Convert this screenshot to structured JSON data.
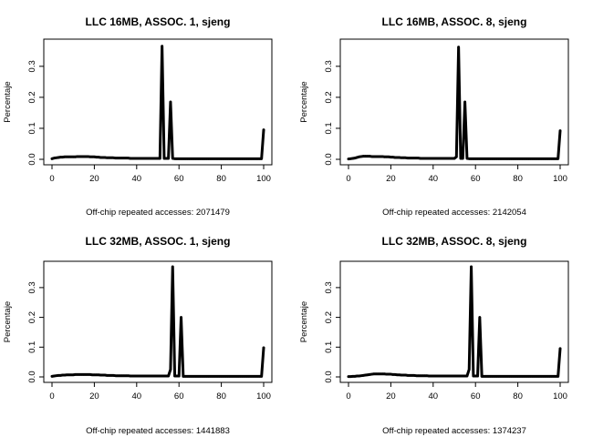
{
  "chart_data": [
    {
      "type": "line",
      "title": "LLC 16MB, ASSOC. 1, sjeng",
      "ylabel": "Percentaje",
      "xlabel": "Off-chip repeated accesses: 2071479",
      "xlim": [
        0,
        100
      ],
      "ylim": [
        0,
        0.37
      ],
      "xticks": [
        "0",
        "20",
        "40",
        "60",
        "80",
        "100"
      ],
      "yticks": [
        "0.0",
        "0.1",
        "0.2",
        "0.3"
      ],
      "x": [
        0,
        1,
        2,
        3,
        4,
        5,
        6,
        7,
        8,
        9,
        10,
        11,
        12,
        13,
        14,
        15,
        16,
        17,
        18,
        19,
        20,
        21,
        22,
        23,
        24,
        25,
        26,
        27,
        28,
        29,
        30,
        31,
        32,
        33,
        34,
        35,
        36,
        37,
        38,
        39,
        40,
        41,
        42,
        43,
        44,
        45,
        46,
        47,
        48,
        49,
        50,
        51,
        52,
        53,
        54,
        55,
        56,
        57,
        58,
        59,
        60,
        61,
        62,
        63,
        64,
        65,
        66,
        67,
        68,
        69,
        70,
        71,
        72,
        73,
        74,
        75,
        76,
        77,
        78,
        79,
        80,
        81,
        82,
        83,
        84,
        85,
        86,
        87,
        88,
        89,
        90,
        91,
        92,
        93,
        94,
        95,
        96,
        97,
        98,
        99,
        100
      ],
      "y": [
        0.002,
        0.004,
        0.005,
        0.006,
        0.007,
        0.007,
        0.008,
        0.008,
        0.008,
        0.008,
        0.008,
        0.008,
        0.009,
        0.009,
        0.009,
        0.009,
        0.009,
        0.009,
        0.008,
        0.008,
        0.008,
        0.007,
        0.007,
        0.006,
        0.006,
        0.006,
        0.005,
        0.005,
        0.005,
        0.005,
        0.004,
        0.004,
        0.004,
        0.004,
        0.004,
        0.004,
        0.004,
        0.003,
        0.003,
        0.003,
        0.003,
        0.003,
        0.003,
        0.003,
        0.003,
        0.003,
        0.003,
        0.003,
        0.003,
        0.003,
        0.003,
        0.003,
        0.365,
        0.003,
        0.003,
        0.003,
        0.185,
        0.003,
        0.002,
        0.002,
        0.002,
        0.002,
        0.002,
        0.002,
        0.002,
        0.002,
        0.002,
        0.002,
        0.002,
        0.002,
        0.002,
        0.002,
        0.002,
        0.002,
        0.002,
        0.002,
        0.002,
        0.002,
        0.002,
        0.002,
        0.002,
        0.002,
        0.002,
        0.002,
        0.002,
        0.002,
        0.002,
        0.002,
        0.002,
        0.002,
        0.002,
        0.002,
        0.002,
        0.002,
        0.002,
        0.002,
        0.002,
        0.002,
        0.002,
        0.002,
        0.095
      ]
    },
    {
      "type": "line",
      "title": "LLC 16MB, ASSOC. 8, sjeng",
      "ylabel": "Percentaje",
      "xlabel": "Off-chip repeated accesses: 2142054",
      "xlim": [
        0,
        100
      ],
      "ylim": [
        0,
        0.37
      ],
      "xticks": [
        "0",
        "20",
        "40",
        "60",
        "80",
        "100"
      ],
      "yticks": [
        "0.0",
        "0.1",
        "0.2",
        "0.3"
      ],
      "x": [
        0,
        1,
        2,
        3,
        4,
        5,
        6,
        7,
        8,
        9,
        10,
        11,
        12,
        13,
        14,
        15,
        16,
        17,
        18,
        19,
        20,
        21,
        22,
        23,
        24,
        25,
        26,
        27,
        28,
        29,
        30,
        31,
        32,
        33,
        34,
        35,
        36,
        37,
        38,
        39,
        40,
        41,
        42,
        43,
        44,
        45,
        46,
        47,
        48,
        49,
        50,
        51,
        52,
        53,
        54,
        55,
        56,
        57,
        58,
        59,
        60,
        61,
        62,
        63,
        64,
        65,
        66,
        67,
        68,
        69,
        70,
        71,
        72,
        73,
        74,
        75,
        76,
        77,
        78,
        79,
        80,
        81,
        82,
        83,
        84,
        85,
        86,
        87,
        88,
        89,
        90,
        91,
        92,
        93,
        94,
        95,
        96,
        97,
        98,
        99,
        100
      ],
      "y": [
        0.001,
        0.002,
        0.003,
        0.004,
        0.006,
        0.008,
        0.009,
        0.01,
        0.01,
        0.01,
        0.01,
        0.009,
        0.009,
        0.009,
        0.009,
        0.009,
        0.009,
        0.008,
        0.008,
        0.008,
        0.007,
        0.007,
        0.006,
        0.006,
        0.006,
        0.005,
        0.005,
        0.005,
        0.004,
        0.004,
        0.004,
        0.004,
        0.004,
        0.004,
        0.003,
        0.003,
        0.003,
        0.003,
        0.003,
        0.003,
        0.003,
        0.003,
        0.003,
        0.003,
        0.003,
        0.003,
        0.003,
        0.003,
        0.003,
        0.003,
        0.003,
        0.008,
        0.362,
        0.003,
        0.003,
        0.185,
        0.003,
        0.002,
        0.002,
        0.002,
        0.002,
        0.002,
        0.002,
        0.002,
        0.002,
        0.002,
        0.002,
        0.002,
        0.002,
        0.002,
        0.002,
        0.002,
        0.002,
        0.002,
        0.002,
        0.002,
        0.002,
        0.002,
        0.002,
        0.002,
        0.002,
        0.002,
        0.002,
        0.002,
        0.002,
        0.002,
        0.002,
        0.002,
        0.002,
        0.002,
        0.002,
        0.002,
        0.002,
        0.002,
        0.002,
        0.002,
        0.002,
        0.002,
        0.002,
        0.002,
        0.092
      ]
    },
    {
      "type": "line",
      "title": "LLC 32MB, ASSOC. 1, sjeng",
      "ylabel": "Percentaje",
      "xlabel": "Off-chip repeated accesses: 1441883",
      "xlim": [
        0,
        100
      ],
      "ylim": [
        0,
        0.37
      ],
      "xticks": [
        "0",
        "20",
        "40",
        "60",
        "80",
        "100"
      ],
      "yticks": [
        "0.0",
        "0.1",
        "0.2",
        "0.3"
      ],
      "x": [
        0,
        1,
        2,
        3,
        4,
        5,
        6,
        7,
        8,
        9,
        10,
        11,
        12,
        13,
        14,
        15,
        16,
        17,
        18,
        19,
        20,
        21,
        22,
        23,
        24,
        25,
        26,
        27,
        28,
        29,
        30,
        31,
        32,
        33,
        34,
        35,
        36,
        37,
        38,
        39,
        40,
        41,
        42,
        43,
        44,
        45,
        46,
        47,
        48,
        49,
        50,
        51,
        52,
        53,
        54,
        55,
        56,
        57,
        58,
        59,
        60,
        61,
        62,
        63,
        64,
        65,
        66,
        67,
        68,
        69,
        70,
        71,
        72,
        73,
        74,
        75,
        76,
        77,
        78,
        79,
        80,
        81,
        82,
        83,
        84,
        85,
        86,
        87,
        88,
        89,
        90,
        91,
        92,
        93,
        94,
        95,
        96,
        97,
        98,
        99,
        100
      ],
      "y": [
        0.002,
        0.003,
        0.004,
        0.005,
        0.005,
        0.006,
        0.006,
        0.007,
        0.007,
        0.007,
        0.007,
        0.008,
        0.008,
        0.008,
        0.008,
        0.008,
        0.008,
        0.008,
        0.008,
        0.007,
        0.007,
        0.007,
        0.007,
        0.006,
        0.006,
        0.006,
        0.005,
        0.005,
        0.005,
        0.005,
        0.004,
        0.004,
        0.004,
        0.004,
        0.004,
        0.004,
        0.004,
        0.003,
        0.003,
        0.003,
        0.003,
        0.003,
        0.003,
        0.003,
        0.003,
        0.003,
        0.003,
        0.003,
        0.003,
        0.003,
        0.003,
        0.003,
        0.003,
        0.003,
        0.003,
        0.003,
        0.025,
        0.37,
        0.003,
        0.003,
        0.003,
        0.2,
        0.002,
        0.002,
        0.002,
        0.002,
        0.002,
        0.002,
        0.002,
        0.002,
        0.002,
        0.002,
        0.002,
        0.002,
        0.002,
        0.002,
        0.002,
        0.002,
        0.002,
        0.002,
        0.002,
        0.002,
        0.002,
        0.002,
        0.002,
        0.002,
        0.002,
        0.002,
        0.002,
        0.002,
        0.002,
        0.002,
        0.002,
        0.002,
        0.002,
        0.002,
        0.002,
        0.002,
        0.002,
        0.002,
        0.098
      ]
    },
    {
      "type": "line",
      "title": "LLC 32MB, ASSOC. 8, sjeng",
      "ylabel": "Percentaje",
      "xlabel": "Off-chip repeated accesses: 1374237",
      "xlim": [
        0,
        100
      ],
      "ylim": [
        0,
        0.37
      ],
      "xticks": [
        "0",
        "20",
        "40",
        "60",
        "80",
        "100"
      ],
      "yticks": [
        "0.0",
        "0.1",
        "0.2",
        "0.3"
      ],
      "x": [
        0,
        1,
        2,
        3,
        4,
        5,
        6,
        7,
        8,
        9,
        10,
        11,
        12,
        13,
        14,
        15,
        16,
        17,
        18,
        19,
        20,
        21,
        22,
        23,
        24,
        25,
        26,
        27,
        28,
        29,
        30,
        31,
        32,
        33,
        34,
        35,
        36,
        37,
        38,
        39,
        40,
        41,
        42,
        43,
        44,
        45,
        46,
        47,
        48,
        49,
        50,
        51,
        52,
        53,
        54,
        55,
        56,
        57,
        58,
        59,
        60,
        61,
        62,
        63,
        64,
        65,
        66,
        67,
        68,
        69,
        70,
        71,
        72,
        73,
        74,
        75,
        76,
        77,
        78,
        79,
        80,
        81,
        82,
        83,
        84,
        85,
        86,
        87,
        88,
        89,
        90,
        91,
        92,
        93,
        94,
        95,
        96,
        97,
        98,
        99,
        100
      ],
      "y": [
        0.001,
        0.001,
        0.002,
        0.002,
        0.003,
        0.003,
        0.004,
        0.005,
        0.006,
        0.007,
        0.008,
        0.009,
        0.01,
        0.01,
        0.01,
        0.01,
        0.01,
        0.01,
        0.009,
        0.009,
        0.009,
        0.008,
        0.008,
        0.007,
        0.007,
        0.006,
        0.006,
        0.006,
        0.005,
        0.005,
        0.005,
        0.005,
        0.004,
        0.004,
        0.004,
        0.004,
        0.004,
        0.004,
        0.003,
        0.003,
        0.003,
        0.003,
        0.003,
        0.003,
        0.003,
        0.003,
        0.003,
        0.003,
        0.003,
        0.003,
        0.003,
        0.003,
        0.003,
        0.003,
        0.003,
        0.003,
        0.003,
        0.025,
        0.37,
        0.003,
        0.003,
        0.003,
        0.2,
        0.002,
        0.002,
        0.002,
        0.002,
        0.002,
        0.002,
        0.002,
        0.002,
        0.002,
        0.002,
        0.002,
        0.002,
        0.002,
        0.002,
        0.002,
        0.002,
        0.002,
        0.002,
        0.002,
        0.002,
        0.002,
        0.002,
        0.002,
        0.002,
        0.002,
        0.002,
        0.002,
        0.002,
        0.002,
        0.002,
        0.002,
        0.002,
        0.002,
        0.002,
        0.002,
        0.002,
        0.002,
        0.095
      ]
    }
  ]
}
